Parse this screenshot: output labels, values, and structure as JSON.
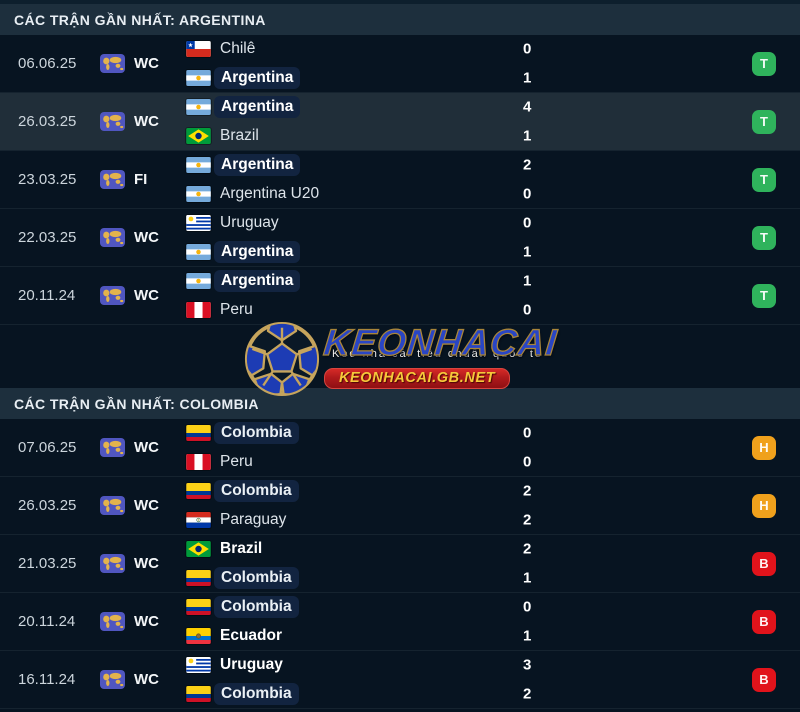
{
  "logo": {
    "text": "KEONHACAI",
    "tagline": "Kèo nhà cái tiêu chuẩn quốc tế",
    "banner": "KEONHACAI.GB.NET"
  },
  "result_colors": {
    "T": "#2fb35c",
    "H": "#f0a11c",
    "B": "#e1131b"
  },
  "sections": [
    {
      "title": "CÁC TRẬN GẦN NHẤT: ARGENTINA",
      "matches": [
        {
          "date": "06.06.25",
          "comp": "WC",
          "highlight": false,
          "home": {
            "name": "Chilê",
            "flag": "chile",
            "tracked": false,
            "winner": false
          },
          "away": {
            "name": "Argentina",
            "flag": "argentina",
            "tracked": true,
            "winner": true
          },
          "score": [
            "0",
            "1"
          ],
          "result": "T"
        },
        {
          "date": "26.03.25",
          "comp": "WC",
          "highlight": true,
          "home": {
            "name": "Argentina",
            "flag": "argentina",
            "tracked": true,
            "winner": true
          },
          "away": {
            "name": "Brazil",
            "flag": "brazil",
            "tracked": false,
            "winner": false
          },
          "score": [
            "4",
            "1"
          ],
          "result": "T"
        },
        {
          "date": "23.03.25",
          "comp": "FI",
          "highlight": false,
          "home": {
            "name": "Argentina",
            "flag": "argentina",
            "tracked": true,
            "winner": true
          },
          "away": {
            "name": "Argentina U20",
            "flag": "argentina",
            "tracked": false,
            "winner": false
          },
          "score": [
            "2",
            "0"
          ],
          "result": "T"
        },
        {
          "date": "22.03.25",
          "comp": "WC",
          "highlight": false,
          "home": {
            "name": "Uruguay",
            "flag": "uruguay",
            "tracked": false,
            "winner": false
          },
          "away": {
            "name": "Argentina",
            "flag": "argentina",
            "tracked": true,
            "winner": true
          },
          "score": [
            "0",
            "1"
          ],
          "result": "T"
        },
        {
          "date": "20.11.24",
          "comp": "WC",
          "highlight": false,
          "home": {
            "name": "Argentina",
            "flag": "argentina",
            "tracked": true,
            "winner": true
          },
          "away": {
            "name": "Peru",
            "flag": "peru",
            "tracked": false,
            "winner": false
          },
          "score": [
            "1",
            "0"
          ],
          "result": "T"
        }
      ]
    },
    {
      "title": "CÁC TRẬN GẦN NHẤT: COLOMBIA",
      "matches": [
        {
          "date": "07.06.25",
          "comp": "WC",
          "highlight": false,
          "home": {
            "name": "Colombia",
            "flag": "colombia",
            "tracked": true,
            "winner": false
          },
          "away": {
            "name": "Peru",
            "flag": "peru",
            "tracked": false,
            "winner": false
          },
          "score": [
            "0",
            "0"
          ],
          "result": "H"
        },
        {
          "date": "26.03.25",
          "comp": "WC",
          "highlight": false,
          "home": {
            "name": "Colombia",
            "flag": "colombia",
            "tracked": true,
            "winner": false
          },
          "away": {
            "name": "Paraguay",
            "flag": "paraguay",
            "tracked": false,
            "winner": false
          },
          "score": [
            "2",
            "2"
          ],
          "result": "H"
        },
        {
          "date": "21.03.25",
          "comp": "WC",
          "highlight": false,
          "home": {
            "name": "Brazil",
            "flag": "brazil",
            "tracked": false,
            "winner": true
          },
          "away": {
            "name": "Colombia",
            "flag": "colombia",
            "tracked": true,
            "winner": false
          },
          "score": [
            "2",
            "1"
          ],
          "result": "B"
        },
        {
          "date": "20.11.24",
          "comp": "WC",
          "highlight": false,
          "home": {
            "name": "Colombia",
            "flag": "colombia",
            "tracked": true,
            "winner": false
          },
          "away": {
            "name": "Ecuador",
            "flag": "ecuador",
            "tracked": false,
            "winner": true
          },
          "score": [
            "0",
            "1"
          ],
          "result": "B"
        },
        {
          "date": "16.11.24",
          "comp": "WC",
          "highlight": false,
          "home": {
            "name": "Uruguay",
            "flag": "uruguay",
            "tracked": false,
            "winner": true
          },
          "away": {
            "name": "Colombia",
            "flag": "colombia",
            "tracked": true,
            "winner": false
          },
          "score": [
            "3",
            "2"
          ],
          "result": "B"
        }
      ]
    }
  ]
}
